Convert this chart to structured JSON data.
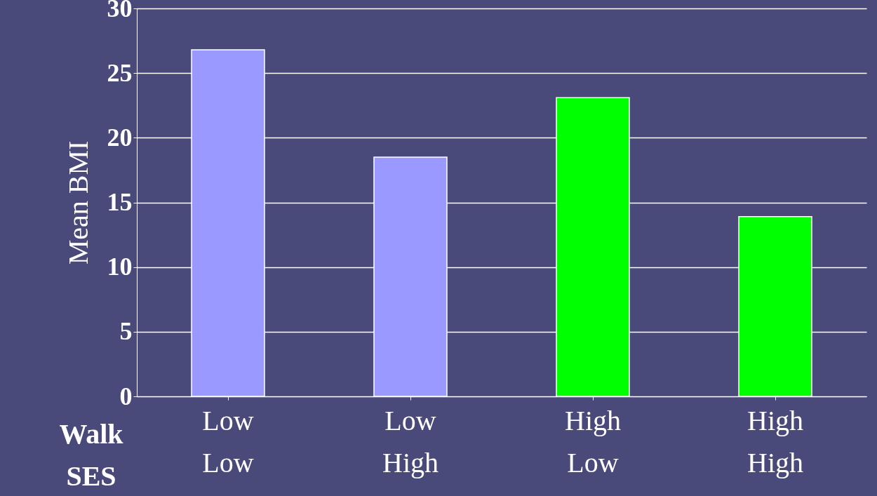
{
  "chart_data": {
    "type": "bar",
    "ylabel": "Mean BMI",
    "categories": [
      "Low\nLow",
      "Low\nHigh",
      "High\nLow",
      "High\nHigh"
    ],
    "values": [
      26.8,
      18.5,
      23.1,
      13.9
    ],
    "colors": [
      "#9999ff",
      "#9999ff",
      "#00ff00",
      "#00ff00"
    ],
    "ylim": [
      0,
      30
    ],
    "yticks": [
      0,
      5,
      10,
      15,
      20,
      25,
      30
    ],
    "grid": "y",
    "annotations": [
      "Walk",
      "SES"
    ]
  }
}
